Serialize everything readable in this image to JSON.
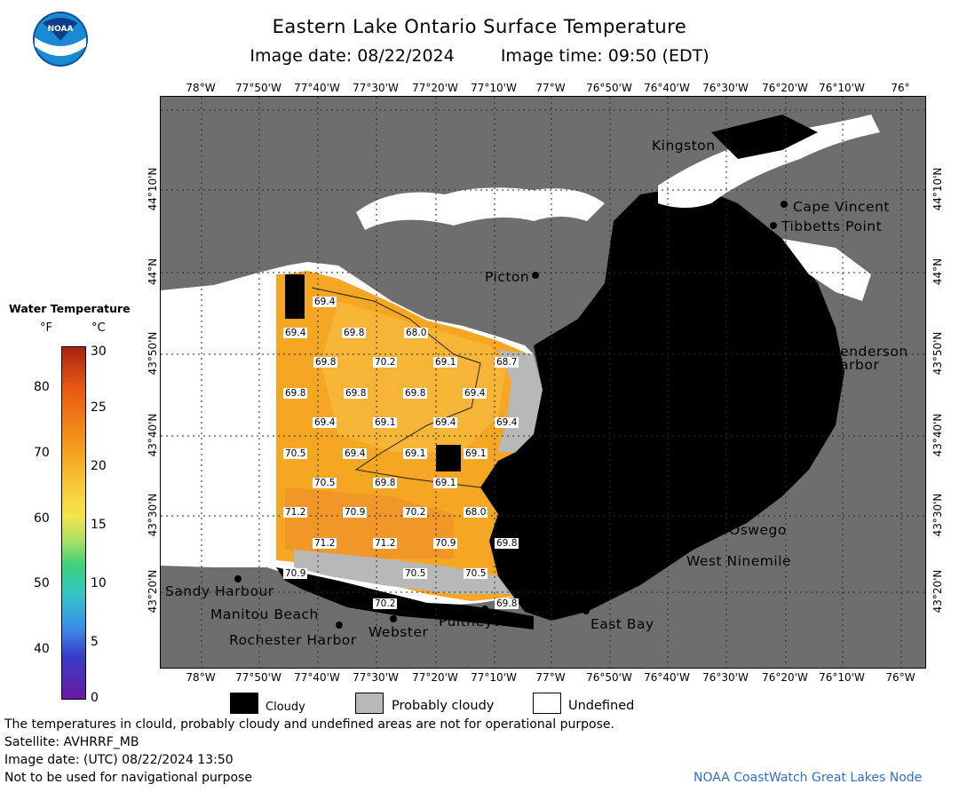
{
  "header": {
    "title": "Eastern Lake Ontario Surface Temperature",
    "image_date_label": "Image date: 08/22/2024",
    "image_time_label": "Image time: 09:50 (EDT)"
  },
  "logo": {
    "text": "NOAA"
  },
  "map": {
    "top_lon_labels": [
      "78°W",
      "77°50'W",
      "77°40'W",
      "77°30'W",
      "77°20'W",
      "77°10'W",
      "77°W",
      "76°50'W",
      "76°40'W",
      "76°30'W",
      "76°20'W",
      "76°10'W",
      "76°"
    ],
    "bottom_lon_labels": [
      "78°W",
      "77°50'W",
      "77°40'W",
      "77°30'W",
      "77°20'W",
      "77°10'W",
      "77°W",
      "76°50'W",
      "76°40'W",
      "76°30'W",
      "76°20'W",
      "76°10'W",
      "76°W"
    ],
    "lat_labels": [
      "44°10'N",
      "44°N",
      "43°50'N",
      "43°40'N",
      "43°30'N",
      "43°20'N"
    ],
    "places": [
      {
        "name": "Kingston"
      },
      {
        "name": "Cape Vincent"
      },
      {
        "name": "Tibbetts Point"
      },
      {
        "name": "Picton"
      },
      {
        "name": "Henderson"
      },
      {
        "name": "Harbor"
      },
      {
        "name": "Oswego"
      },
      {
        "name": "West Ninemile"
      },
      {
        "name": "Sandy Harbour"
      },
      {
        "name": "Manitou Beach"
      },
      {
        "name": "Rochester Harbor"
      },
      {
        "name": "Webster"
      },
      {
        "name": "Pultneyville"
      },
      {
        "name": "East Bay"
      }
    ],
    "temperature_labels": [
      "69.4",
      "69.4",
      "69.8",
      "68.0",
      "69.8",
      "70.2",
      "69.1",
      "68.7",
      "69.8",
      "69.8",
      "69.8",
      "69.4",
      "69.4",
      "69.1",
      "69.4",
      "69.4",
      "70.5",
      "69.4",
      "69.1",
      "69.1",
      "70.5",
      "69.8",
      "69.1",
      "71.2",
      "70.9",
      "70.2",
      "68.0",
      "71.2",
      "71.2",
      "70.9",
      "69.8",
      "70.9",
      "70.5",
      "70.5",
      "70.2",
      "69.8"
    ]
  },
  "colorbar": {
    "title": "Water Temperature",
    "unit_f": "°F",
    "unit_c": "°C",
    "f_ticks": [
      "80",
      "70",
      "60",
      "50",
      "40"
    ],
    "c_ticks": [
      "30",
      "25",
      "20",
      "15",
      "10",
      "5",
      "0"
    ]
  },
  "legend": {
    "cloudy": "Cloudy",
    "probably_cloudy": "Probably cloudy",
    "undefined": "Undefined",
    "colors": {
      "cloudy": "#000000",
      "probably_cloudy": "#b8b8b8",
      "undefined": "#ffffff",
      "land": "#6e6e6e",
      "water_warm": "#f5a623"
    }
  },
  "footer": {
    "disclaimer": "The temperatures in clould, probably cloudy and undefined areas are not for operational purpose.",
    "satellite": "Satellite: AVHRRF_MB",
    "utc_date": "Image date: (UTC) 08/22/2024  13:50",
    "nav_warning": "Not to be used for navigational purpose",
    "credit": "NOAA CoastWatch Great Lakes Node"
  }
}
